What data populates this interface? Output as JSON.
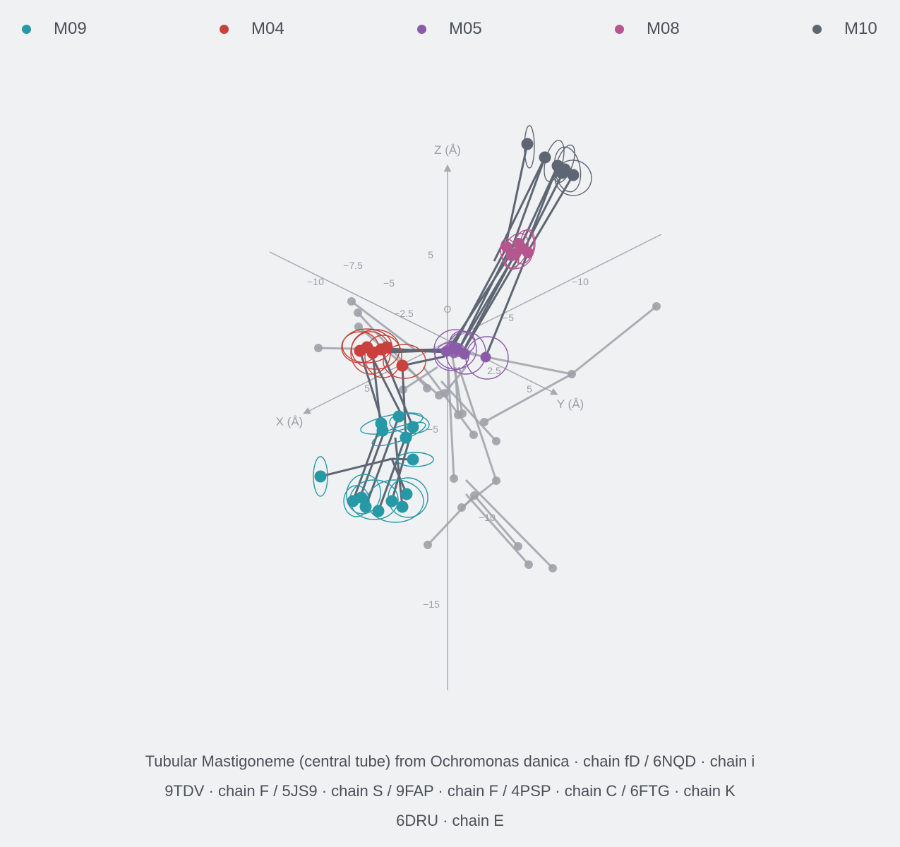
{
  "colors": {
    "background": "#f0f1f3",
    "axis": "#a7aab0",
    "axis_text": "#9a9ea5",
    "background_structure": "#9ea1a8"
  },
  "chart_data": {
    "type": "scatter",
    "subtype": "3d-structure-superposition",
    "axes": {
      "x": {
        "label": "X (Å)",
        "ticks": [
          "−10",
          "−7.5",
          "−5",
          "−2.5",
          "5"
        ]
      },
      "y": {
        "label": "Y (Å)",
        "ticks": [
          "−10",
          "−5",
          "2.5",
          "5"
        ]
      },
      "z": {
        "label": "Z (Å)",
        "ticks": [
          "5",
          "−5",
          "−10",
          "−15"
        ]
      },
      "origin_label": "O"
    },
    "legend_position": "top",
    "series": [
      {
        "name": "M09",
        "color": "#2698a6"
      },
      {
        "name": "M04",
        "color": "#c9413a"
      },
      {
        "name": "M05",
        "color": "#8b5aa8"
      },
      {
        "name": "M08",
        "color": "#b5568f"
      },
      {
        "name": "M10",
        "color": "#5e6673"
      }
    ],
    "structures": [
      "Tubular Mastigoneme (central tube) from Ochromonas danica · chain fD",
      "6NQD · chain i",
      "9TDV · chain F",
      "5JS9 · chain S",
      "9FAP · chain F",
      "4PSP · chain C",
      "6FTG · chain K",
      "6DRU · chain E"
    ],
    "separator": "/"
  },
  "caption": {
    "line1": "Tubular Mastigoneme (central tube) from Ochromonas danica · chain fD    /    6NQD · chain i",
    "line2": "9TDV · chain F    /    5JS9 · chain S    /    9FAP · chain F    /    4PSP · chain C    /    6FTG · chain K",
    "line3": "6DRU · chain E"
  }
}
